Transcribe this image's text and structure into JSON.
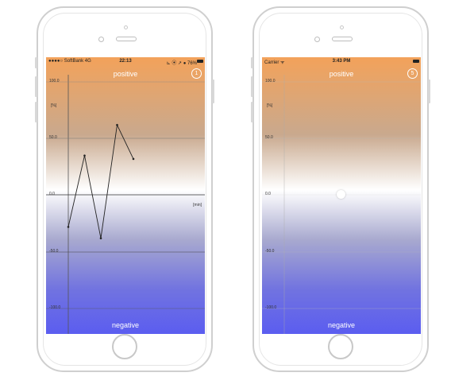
{
  "phones": [
    {
      "status": {
        "carrier": "●●●●○ SoftBank  4G",
        "time": "22:13",
        "right": "⊾ ⦿ ↗ ● 76%"
      },
      "labels": {
        "top": "positive",
        "bottom": "negative"
      },
      "badge": "1",
      "units": {
        "y": "[%]",
        "x": "[min]"
      },
      "ticks": [
        "100.0",
        "50.0",
        "0.0",
        "-50.0",
        "-100.0"
      ]
    },
    {
      "status": {
        "carrier": "Carrier ᯤ",
        "time": "3:43 PM",
        "right": ""
      },
      "labels": {
        "top": "positive",
        "bottom": "negative"
      },
      "badge": "5",
      "units": {
        "y": "[%]",
        "x": ""
      },
      "ticks": [
        "100.0",
        "50.0",
        "0.0",
        "-50.0",
        "-100.0"
      ]
    }
  ],
  "chart_data": {
    "type": "line",
    "title": "",
    "xlabel": "[min]",
    "ylabel": "[%]",
    "ylim": [
      -100,
      100
    ],
    "x": [
      0,
      1,
      2,
      3,
      4
    ],
    "series": [
      {
        "values": [
          -28,
          35,
          -38,
          62,
          32
        ]
      }
    ]
  }
}
